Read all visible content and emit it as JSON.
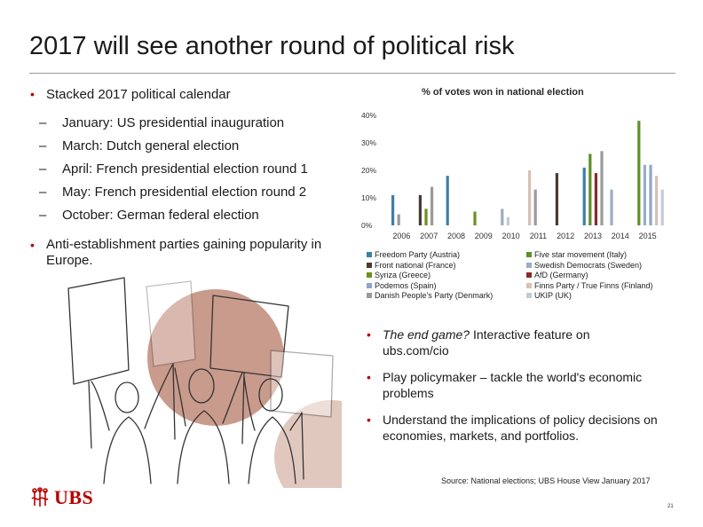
{
  "header": {
    "title": "2017 will see another round of political risk"
  },
  "left_bullets": {
    "calendar_heading": "Stacked 2017 political calendar",
    "calendar_items": [
      "January: US presidential inauguration",
      "March: Dutch general election",
      "April: French presidential election round 1",
      "May: French presidential election round 2",
      "October: German federal election"
    ],
    "second": "Anti-establishment parties gaining popularity in Europe."
  },
  "chart_data": {
    "type": "bar",
    "title": "% of votes won in national election",
    "categories": [
      "2006",
      "2007",
      "2008",
      "2009",
      "2010",
      "2011",
      "2012",
      "2013",
      "2014",
      "2015"
    ],
    "ylim": [
      0,
      40
    ],
    "yticks": [
      "0%",
      "10%",
      "20%",
      "30%",
      "40%"
    ],
    "grid": false,
    "legend_position": "bottom",
    "series": [
      {
        "name": "Freedom Party (Austria)",
        "color": "#3d7fa6",
        "values": [
          11,
          null,
          18,
          null,
          null,
          null,
          null,
          21,
          null,
          null
        ]
      },
      {
        "name": "Five star movement (Italy)",
        "color": "#5e8f2a",
        "values": [
          null,
          null,
          null,
          null,
          null,
          null,
          null,
          26,
          null,
          38
        ]
      },
      {
        "name": "Front national (France)",
        "color": "#4a3a33",
        "values": [
          null,
          11,
          null,
          null,
          null,
          null,
          19,
          null,
          null,
          null
        ]
      },
      {
        "name": "Swedish Democrats (Sweden)",
        "color": "#9aaebf",
        "values": [
          null,
          null,
          null,
          null,
          6,
          null,
          null,
          null,
          13,
          22
        ]
      },
      {
        "name": "Syriza (Greece)",
        "color": "#6e8e1e",
        "values": [
          null,
          6,
          null,
          5,
          null,
          null,
          null,
          null,
          null,
          null
        ]
      },
      {
        "name": "AfD (Germany)",
        "color": "#8b2a2a",
        "values": [
          null,
          null,
          null,
          null,
          null,
          null,
          null,
          19,
          null,
          null
        ]
      },
      {
        "name": "Podemos (Spain)",
        "color": "#8ea6c4",
        "values": [
          null,
          null,
          null,
          null,
          null,
          null,
          null,
          null,
          null,
          22
        ]
      },
      {
        "name": "Finns Party / True Finns (Finland)",
        "color": "#d8c0b4",
        "values": [
          null,
          null,
          null,
          null,
          null,
          20,
          null,
          null,
          null,
          18
        ]
      },
      {
        "name": "Danish People's Party (Denmark)",
        "color": "#9a9a9a",
        "values": [
          4,
          14,
          null,
          null,
          null,
          13,
          null,
          27,
          null,
          null
        ]
      },
      {
        "name": "UKIP (UK)",
        "color": "#c2cad6",
        "values": [
          null,
          null,
          null,
          null,
          3,
          null,
          null,
          null,
          null,
          13
        ]
      }
    ]
  },
  "right_bullets": [
    {
      "emphasis": "The end game?",
      "text": " Interactive feature on ubs.com/cio"
    },
    {
      "emphasis": "",
      "text": "Play policymaker – tackle the world's economic problems"
    },
    {
      "emphasis": "",
      "text": "Understand the implications of policy decisions on economies, markets, and portfolios."
    }
  ],
  "footer": {
    "source": "Source: National elections; UBS  House View January 2017",
    "page_number": "21",
    "logo_text": "UBS",
    "logo_icon": "ubs-keys-icon"
  },
  "colors": {
    "accent_red": "#b80000",
    "bullet_red": "#b90000"
  }
}
